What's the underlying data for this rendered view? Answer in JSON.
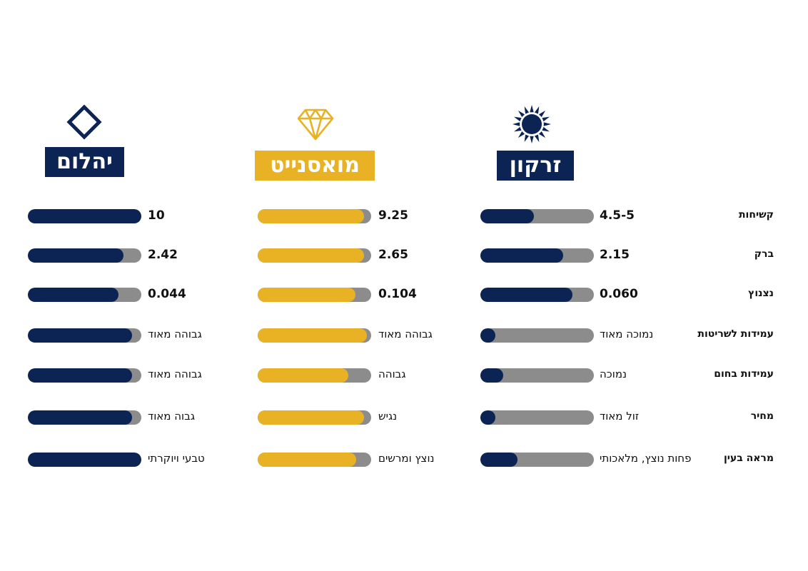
{
  "colors": {
    "navy": "#0b2454",
    "gold": "#e8b224",
    "track": "#8c8c8c"
  },
  "row_labels": [
    "קשיחות",
    "ברק",
    "נצנוץ",
    "עמידות לשריטות",
    "עמידות בחום",
    "מחיר",
    "מראה בעין"
  ],
  "columns": [
    {
      "title": "זרקון",
      "icon": "sun-icon",
      "color": "navy",
      "values": [
        "4.5-5",
        "2.15",
        "0.060",
        "נמוכה מאוד",
        "נמוכה",
        "זול מאוד",
        "פחות נוצץ, מלאכותי"
      ],
      "levels": [
        0.47,
        0.73,
        0.81,
        0.13,
        0.2,
        0.13,
        0.33
      ]
    },
    {
      "title": "מואסנייט",
      "icon": "diamond-gem-icon",
      "color": "gold",
      "values": [
        "9.25",
        "2.65",
        "0.104",
        "גבוהה מאוד",
        "גבוהה",
        "נגיש",
        "נוצץ ומרשים"
      ],
      "levels": [
        0.94,
        0.94,
        0.86,
        0.96,
        0.8,
        0.94,
        0.87
      ]
    },
    {
      "title": "יהלום",
      "icon": "diamond-outline-icon",
      "color": "navy",
      "values": [
        "10",
        "2.42",
        "0.044",
        "גבוהה מאוד",
        "גבוהה מאוד",
        "גבוה מאוד",
        "טבעי ויוקרתי"
      ],
      "levels": [
        1.0,
        0.84,
        0.8,
        0.92,
        0.92,
        0.92,
        1.0
      ]
    }
  ],
  "chart_data": {
    "type": "bar",
    "categories": [
      "קשיחות",
      "ברק",
      "נצנוץ",
      "עמידות לשריטות",
      "עמידות בחום",
      "מחיר",
      "מראה בעין"
    ],
    "series": [
      {
        "name": "זרקון",
        "labels": [
          "4.5-5",
          "2.15",
          "0.060",
          "נמוכה מאוד",
          "נמוכה",
          "זול מאוד",
          "פחות נוצץ, מלאכותי"
        ],
        "values": [
          0.47,
          0.73,
          0.81,
          0.13,
          0.2,
          0.13,
          0.33
        ]
      },
      {
        "name": "מואסנייט",
        "labels": [
          "9.25",
          "2.65",
          "0.104",
          "גבוהה מאוד",
          "גבוהה",
          "נגיש",
          "נוצץ ומרשים"
        ],
        "values": [
          0.94,
          0.94,
          0.86,
          0.96,
          0.8,
          0.94,
          0.87
        ]
      },
      {
        "name": "יהלום",
        "labels": [
          "10",
          "2.42",
          "0.044",
          "גבוהה מאוד",
          "גבוהה מאוד",
          "גבוה מאוד",
          "טבעי ויוקרתי"
        ],
        "values": [
          1.0,
          0.84,
          0.8,
          0.92,
          0.92,
          0.92,
          1.0
        ]
      }
    ],
    "ylim": [
      0,
      1
    ],
    "grid": false
  }
}
